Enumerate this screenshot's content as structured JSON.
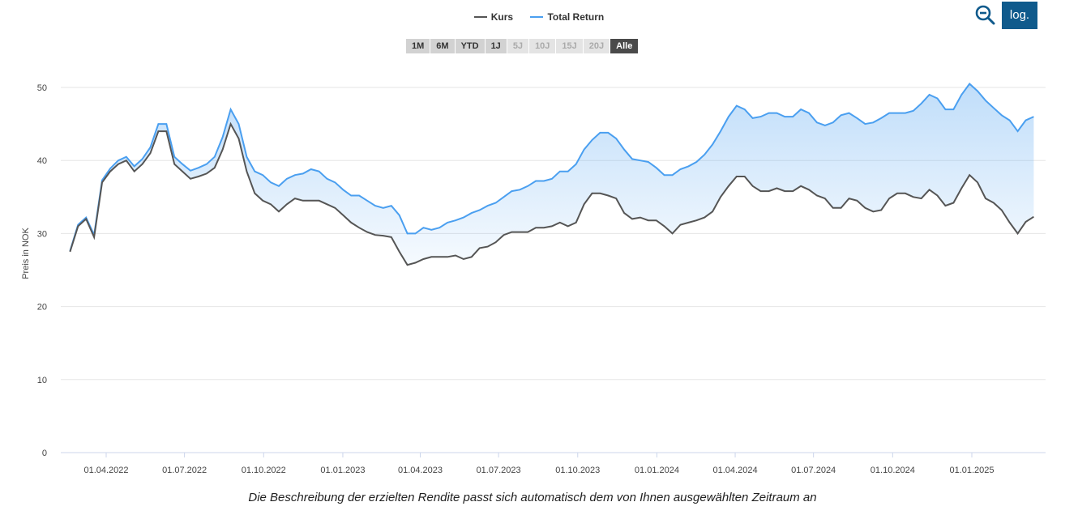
{
  "legend": [
    {
      "label": "Kurs",
      "color": "#555555"
    },
    {
      "label": "Total Return",
      "color": "#4a9ff0"
    }
  ],
  "ranges": [
    {
      "label": "1M",
      "state": "enabled"
    },
    {
      "label": "6M",
      "state": "enabled"
    },
    {
      "label": "YTD",
      "state": "enabled"
    },
    {
      "label": "1J",
      "state": "enabled"
    },
    {
      "label": "5J",
      "state": "disabled"
    },
    {
      "label": "10J",
      "state": "disabled"
    },
    {
      "label": "15J",
      "state": "disabled"
    },
    {
      "label": "20J",
      "state": "disabled"
    },
    {
      "label": "Alle",
      "state": "active"
    }
  ],
  "controls": {
    "zoom_icon": "zoom-out-icon",
    "log_label": "log."
  },
  "caption": "Die Beschreibung der erzielten Rendite passt sich automatisch dem von Ihnen ausgewählten Zeitraum an",
  "chart_data": {
    "type": "line",
    "title": "",
    "xlabel": "",
    "ylabel": "Preis in NOK",
    "ylim": [
      0,
      50
    ],
    "yticks": [
      0,
      10,
      20,
      30,
      40,
      50
    ],
    "grid": true,
    "legend_position": "top-center",
    "xticks": [
      {
        "date": "2022-04-01",
        "label": "01.04.2022"
      },
      {
        "date": "2022-07-01",
        "label": "01.07.2022"
      },
      {
        "date": "2022-10-01",
        "label": "01.10.2022"
      },
      {
        "date": "2023-01-01",
        "label": "01.01.2023"
      },
      {
        "date": "2023-04-01",
        "label": "01.04.2023"
      },
      {
        "date": "2023-07-01",
        "label": "01.07.2023"
      },
      {
        "date": "2023-10-01",
        "label": "01.10.2023"
      },
      {
        "date": "2024-01-01",
        "label": "01.01.2024"
      },
      {
        "date": "2024-04-01",
        "label": "01.04.2024"
      },
      {
        "date": "2024-07-01",
        "label": "01.07.2024"
      },
      {
        "date": "2024-10-01",
        "label": "01.10.2024"
      },
      {
        "date": "2025-01-01",
        "label": "01.01.2025"
      }
    ],
    "x_start": "2022-02-18",
    "x_end": "2025-03-14",
    "series": [
      {
        "name": "Kurs",
        "color": "#555555",
        "values": [
          27.5,
          31,
          32,
          29.5,
          37,
          38.5,
          39.5,
          40,
          38.5,
          39.5,
          41,
          44,
          44,
          39.5,
          38.5,
          37.5,
          37.8,
          38.2,
          39,
          41.5,
          45,
          43,
          38.5,
          35.5,
          34.5,
          34,
          33,
          34,
          34.8,
          34.5,
          34.5,
          34.5,
          34,
          33.5,
          32.5,
          31.5,
          30.8,
          30.2,
          29.8,
          29.7,
          29.5,
          27.5,
          25.7,
          26,
          26.5,
          26.8,
          26.8,
          26.8,
          27,
          26.5,
          26.8,
          28,
          28.2,
          28.8,
          29.8,
          30.2,
          30.2,
          30.2,
          30.8,
          30.8,
          31,
          31.5,
          31,
          31.5,
          34,
          35.5,
          35.5,
          35.2,
          34.8,
          32.8,
          32,
          32.2,
          31.8,
          31.8,
          31,
          30,
          31.2,
          31.5,
          31.8,
          32.2,
          33,
          35,
          36.5,
          37.8,
          37.8,
          36.5,
          35.8,
          35.8,
          36.2,
          35.8,
          35.8,
          36.5,
          36,
          35.2,
          34.8,
          33.5,
          33.5,
          34.8,
          34.5,
          33.5,
          33,
          33.2,
          34.8,
          35.5,
          35.5,
          35,
          34.8,
          36,
          35.2,
          33.8,
          34.2,
          36.2,
          38,
          37,
          34.8,
          34.2,
          33.2,
          31.5,
          30,
          31.6,
          32.3
        ]
      },
      {
        "name": "Total Return",
        "color": "#4a9ff0",
        "values": [
          27.6,
          31.2,
          32.2,
          29.8,
          37.3,
          38.9,
          40,
          40.5,
          39.2,
          40.2,
          41.8,
          45,
          45,
          40.5,
          39.5,
          38.6,
          39,
          39.5,
          40.5,
          43.2,
          47,
          45,
          40.5,
          38.5,
          38,
          37,
          36.5,
          37.5,
          38,
          38.2,
          38.8,
          38.5,
          37.5,
          37,
          36,
          35.2,
          35.2,
          34.5,
          33.8,
          33.5,
          33.8,
          32.5,
          30,
          30,
          30.8,
          30.5,
          30.8,
          31.5,
          31.8,
          32.2,
          32.8,
          33.2,
          33.8,
          34.2,
          35,
          35.8,
          36,
          36.5,
          37.2,
          37.2,
          37.5,
          38.5,
          38.5,
          39.5,
          41.5,
          42.8,
          43.8,
          43.8,
          43,
          41.5,
          40.2,
          40,
          39.8,
          39,
          38,
          38,
          38.8,
          39.2,
          39.8,
          40.8,
          42.2,
          44,
          46,
          47.5,
          47,
          45.8,
          46,
          46.5,
          46.5,
          46,
          46,
          47,
          46.5,
          45.2,
          44.8,
          45.2,
          46.2,
          46.5,
          45.8,
          45,
          45.2,
          45.8,
          46.5,
          46.5,
          46.5,
          46.8,
          47.8,
          49,
          48.5,
          47,
          47,
          49,
          50.5,
          49.5,
          48.2,
          47.2,
          46.2,
          45.5,
          44,
          45.5,
          46
        ]
      }
    ]
  }
}
